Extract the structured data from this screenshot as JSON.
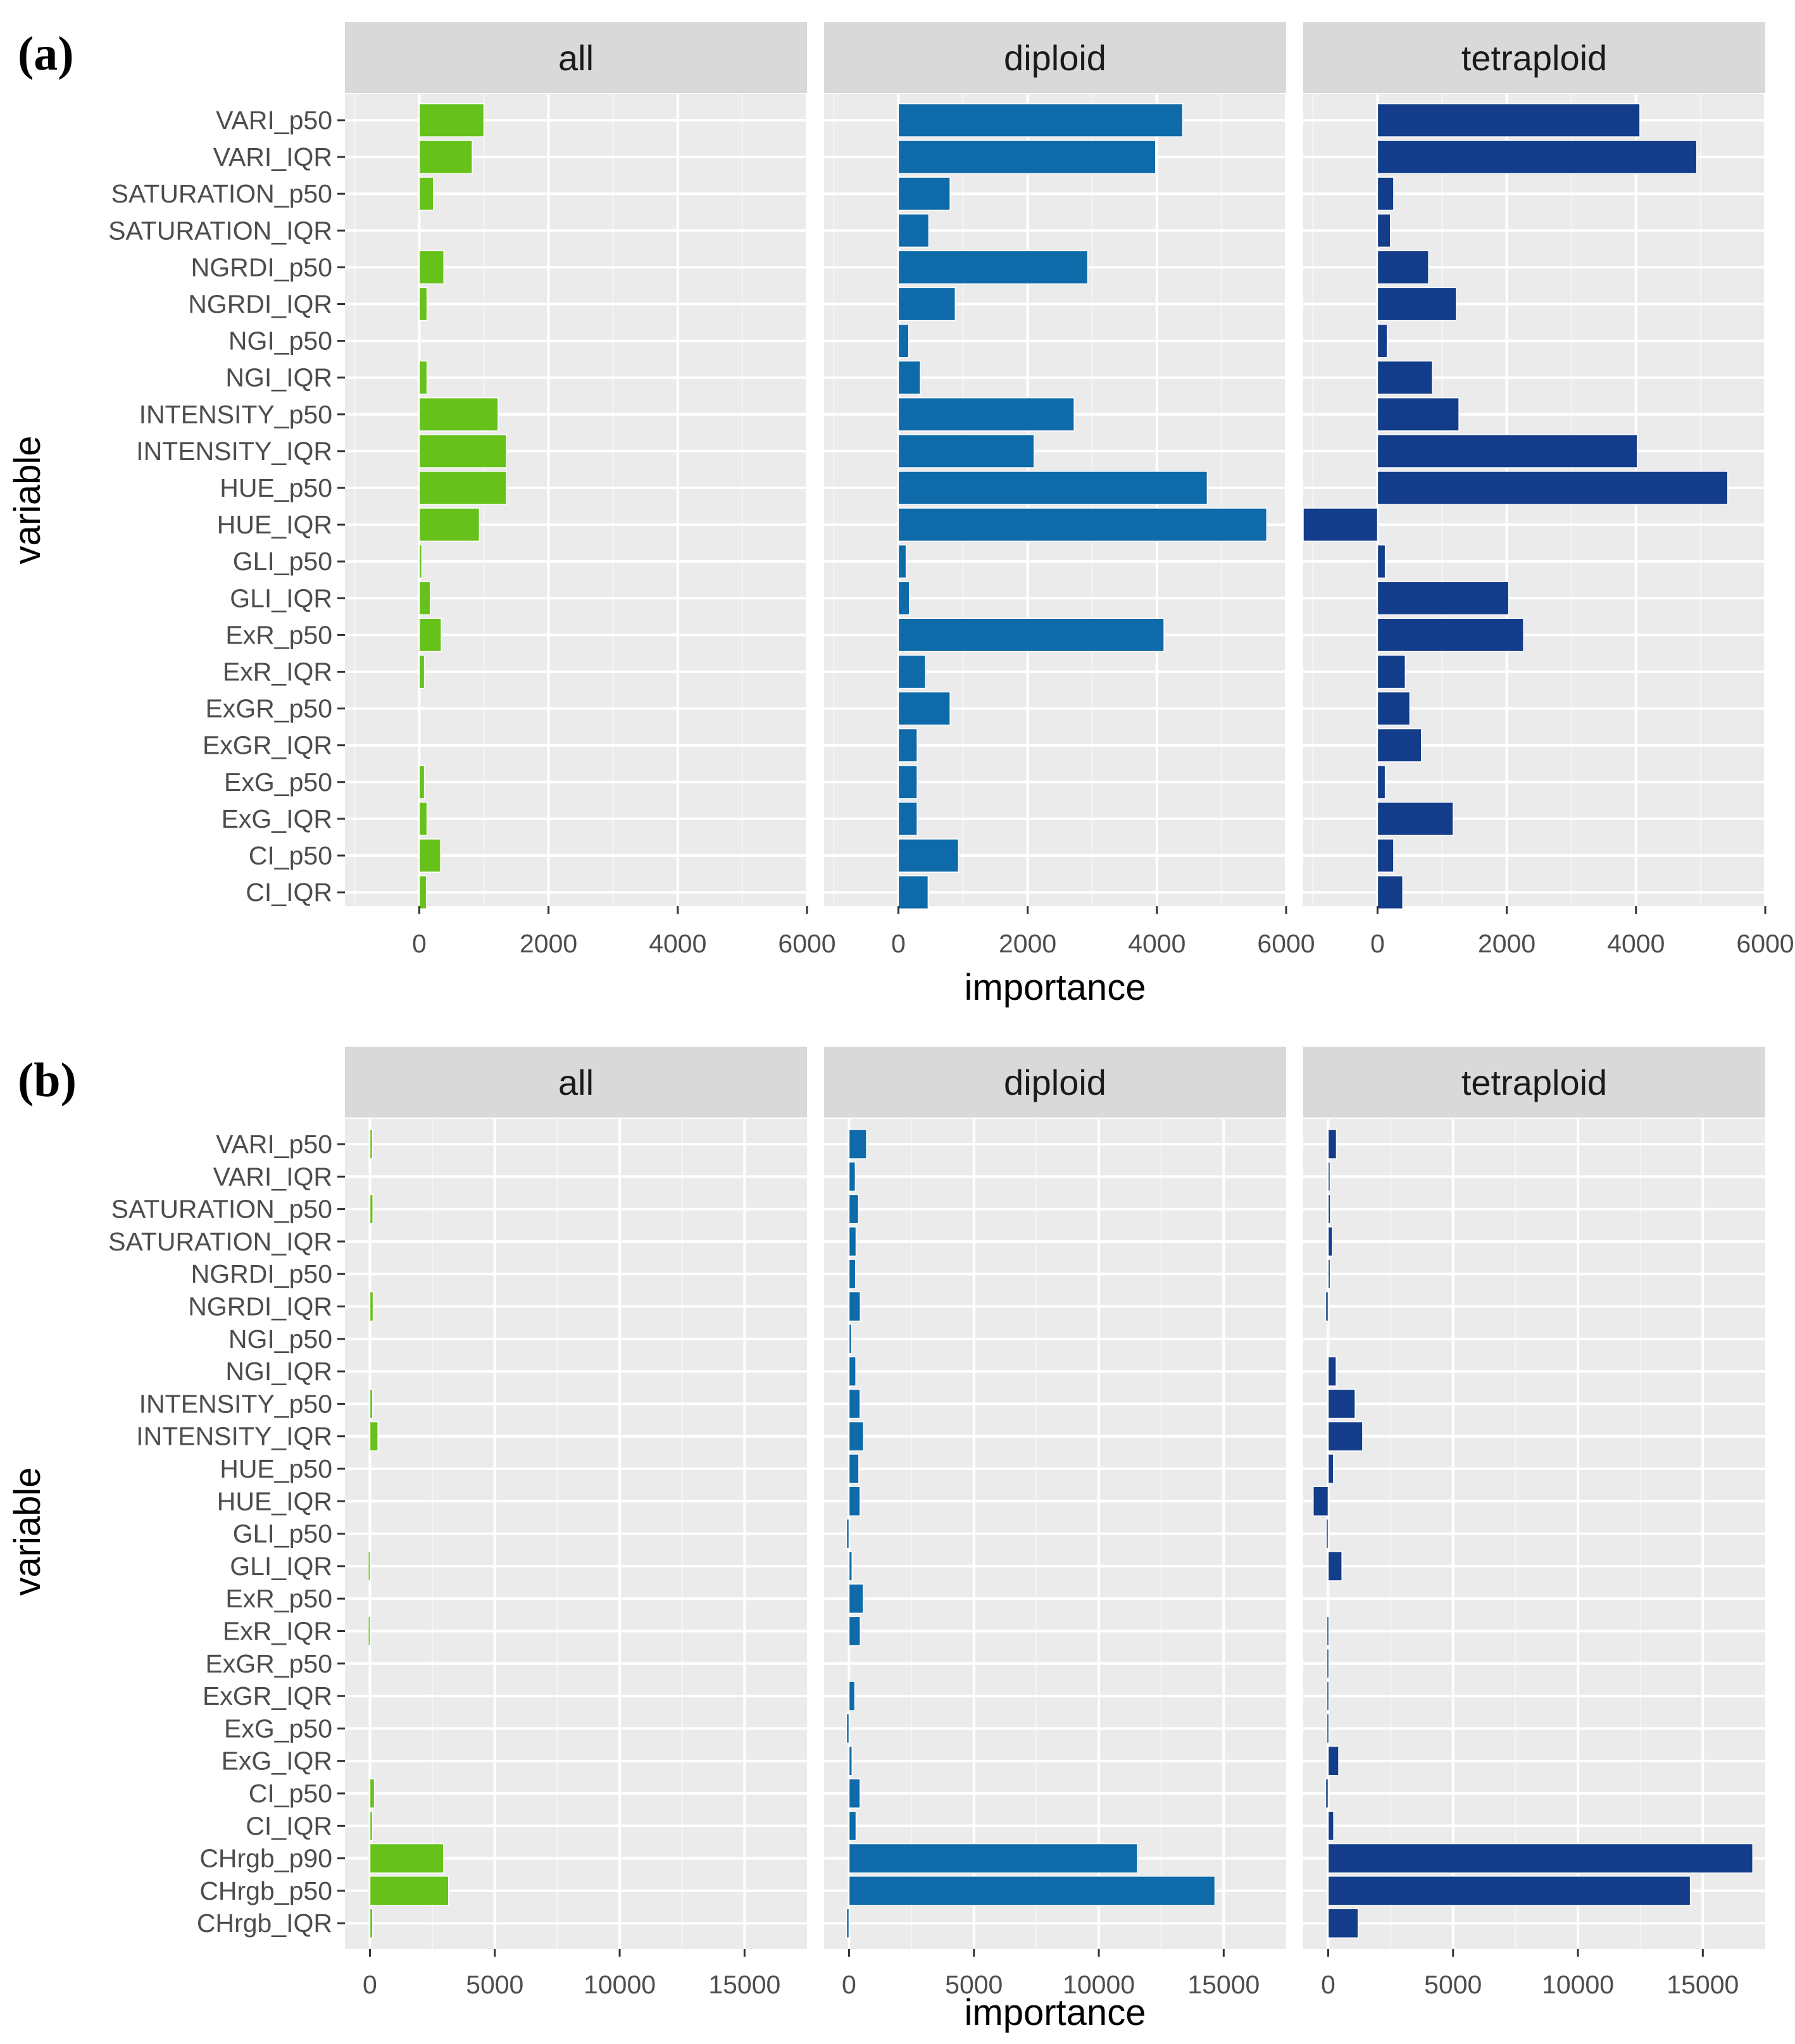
{
  "colors": {
    "all": "#66c21a",
    "diploid": "#0e6aa8",
    "tetraploid": "#133d8a"
  },
  "chart_data": [
    {
      "type": "bar",
      "orientation": "horizontal",
      "panel_label": "(a)",
      "xlabel": "importance",
      "ylabel": "variable",
      "facets": [
        "all",
        "diploid",
        "tetraploid"
      ],
      "xlim": [
        -1150,
        6000
      ],
      "xticks": [
        0,
        2000,
        4000,
        6000
      ],
      "xtick_labels": [
        "0",
        "2000",
        "4000",
        "6000"
      ],
      "grid": true,
      "categories": [
        "VARI_p50",
        "VARI_IQR",
        "SATURATION_p50",
        "SATURATION_IQR",
        "NGRDI_p50",
        "NGRDI_IQR",
        "NGI_p50",
        "NGI_IQR",
        "INTENSITY_p50",
        "INTENSITY_IQR",
        "HUE_p50",
        "HUE_IQR",
        "GLI_p50",
        "GLI_IQR",
        "ExR_p50",
        "ExR_IQR",
        "ExGR_p50",
        "ExGR_IQR",
        "ExG_p50",
        "ExG_IQR",
        "CI_p50",
        "CI_IQR"
      ],
      "series": [
        {
          "name": "all",
          "values": [
            1000,
            820,
            220,
            0,
            380,
            120,
            0,
            120,
            1220,
            1350,
            1350,
            930,
            40,
            170,
            340,
            80,
            0,
            0,
            80,
            120,
            330,
            110
          ]
        },
        {
          "name": "diploid",
          "values": [
            4400,
            3980,
            800,
            470,
            2930,
            880,
            160,
            340,
            2720,
            2100,
            4780,
            5700,
            120,
            170,
            4110,
            420,
            800,
            290,
            290,
            290,
            930,
            460
          ]
        },
        {
          "name": "tetraploid",
          "values": [
            4060,
            4940,
            250,
            200,
            790,
            1220,
            150,
            850,
            1260,
            4020,
            5420,
            -1150,
            120,
            2030,
            2260,
            430,
            500,
            680,
            120,
            1170,
            250,
            390
          ]
        }
      ]
    },
    {
      "type": "bar",
      "orientation": "horizontal",
      "panel_label": "(b)",
      "xlabel": "importance",
      "ylabel": "variable",
      "facets": [
        "all",
        "diploid",
        "tetraploid"
      ],
      "xlim": [
        -1000,
        17500
      ],
      "xticks": [
        0,
        5000,
        10000,
        15000
      ],
      "xtick_labels": [
        "0",
        "5000",
        "10000",
        "15000"
      ],
      "grid": true,
      "categories": [
        "VARI_p50",
        "VARI_IQR",
        "SATURATION_p50",
        "SATURATION_IQR",
        "NGRDI_p50",
        "NGRDI_IQR",
        "NGI_p50",
        "NGI_IQR",
        "INTENSITY_p50",
        "INTENSITY_IQR",
        "HUE_p50",
        "HUE_IQR",
        "GLI_p50",
        "GLI_IQR",
        "ExR_p50",
        "ExR_IQR",
        "ExGR_p50",
        "ExGR_IQR",
        "ExG_p50",
        "ExG_IQR",
        "CI_p50",
        "CI_IQR",
        "CHrgb_p90",
        "CHrgb_p50",
        "CHrgb_IQR"
      ],
      "series": [
        {
          "name": "all",
          "values": [
            100,
            0,
            120,
            0,
            0,
            130,
            0,
            0,
            110,
            320,
            0,
            0,
            0,
            -70,
            0,
            -70,
            0,
            0,
            0,
            0,
            180,
            100,
            2950,
            3150,
            110
          ]
        },
        {
          "name": "diploid",
          "values": [
            700,
            250,
            380,
            280,
            260,
            450,
            100,
            270,
            440,
            580,
            390,
            440,
            -100,
            120,
            570,
            450,
            0,
            230,
            -100,
            120,
            440,
            280,
            11550,
            14650,
            -100
          ]
        },
        {
          "name": "tetraploid",
          "values": [
            330,
            70,
            90,
            170,
            80,
            -100,
            0,
            320,
            1080,
            1380,
            210,
            -600,
            -80,
            550,
            0,
            -50,
            -50,
            -50,
            -50,
            420,
            -100,
            220,
            17000,
            14500,
            1200
          ]
        }
      ]
    }
  ]
}
